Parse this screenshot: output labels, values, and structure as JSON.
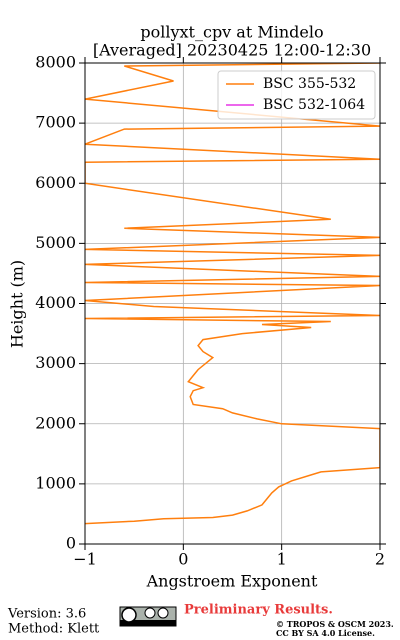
{
  "chart_data": {
    "type": "line",
    "title": "pollyxt_cpv at Mindelo",
    "subtitle": "[Averaged] 20230425 12:00-12:30",
    "xlabel": "Angstroem Exponent",
    "ylabel": "Height (m)",
    "y": [
      340,
      380,
      420,
      440,
      480,
      550,
      650,
      750,
      850,
      950,
      1050,
      1150,
      1200,
      1270,
      1920,
      2000,
      2080,
      2180,
      2250,
      2320,
      2450,
      2550,
      2600,
      2700,
      2800,
      2900,
      3100,
      3200,
      3300,
      3400,
      3500,
      3600,
      3650,
      3700,
      3750,
      3800,
      3950,
      4050,
      4300,
      4350,
      4450,
      4650,
      4800,
      4900,
      5100,
      5250,
      5400,
      6000,
      6350,
      6400,
      6650,
      6900,
      6950,
      7400,
      7700,
      7950,
      8000
    ],
    "series": [
      {
        "name": "BSC 355-532",
        "color": "#ff7f0e",
        "values": [
          -1.0,
          -0.5,
          -0.2,
          0.3,
          0.5,
          0.65,
          0.8,
          0.85,
          0.9,
          0.97,
          1.1,
          1.3,
          1.4,
          2.0,
          2.0,
          1.0,
          0.75,
          0.5,
          0.4,
          0.1,
          0.07,
          0.1,
          0.2,
          0.05,
          0.1,
          0.15,
          0.3,
          0.2,
          0.15,
          0.2,
          0.6,
          1.3,
          0.8,
          1.5,
          -1.0,
          2.0,
          -0.3,
          -1.0,
          2.0,
          -1.0,
          2.0,
          -1.0,
          2.0,
          -1.0,
          2.0,
          -0.6,
          1.5,
          -1.0,
          -1.0,
          2.0,
          -1.0,
          -0.6,
          2.0,
          -1.0,
          -0.1,
          -0.6,
          2.0
        ]
      },
      {
        "name": "BSC 532-1064",
        "color": "#e535e5",
        "values": [
          null,
          null,
          null,
          null,
          null,
          null,
          null,
          null,
          null,
          null,
          null,
          null,
          null,
          null,
          null,
          null,
          null,
          null,
          null,
          null,
          null,
          null,
          null,
          null,
          null,
          null,
          null,
          null,
          null,
          null,
          null,
          null,
          null,
          null,
          null,
          null,
          null,
          null,
          null,
          null,
          null,
          null,
          null,
          null,
          null,
          null,
          null,
          null,
          null,
          null,
          null,
          null,
          null,
          null,
          null,
          null,
          null
        ]
      }
    ],
    "xlim": [
      -1,
      2
    ],
    "xticks": [
      {
        "value": -1,
        "label": "−1"
      },
      0,
      1,
      2
    ],
    "ylim": [
      0,
      8000
    ],
    "yticks": [
      0,
      1000,
      2000,
      3000,
      4000,
      5000,
      6000,
      7000,
      8000
    ],
    "grid": true,
    "legend": "upper right",
    "footer": {
      "version": "Version: 3.6",
      "method": "Method: Klett",
      "status": "Preliminary Results.",
      "copyright": "© TROPOS & OSCM 2023.",
      "license": "CC BY SA 4.0 License."
    }
  }
}
